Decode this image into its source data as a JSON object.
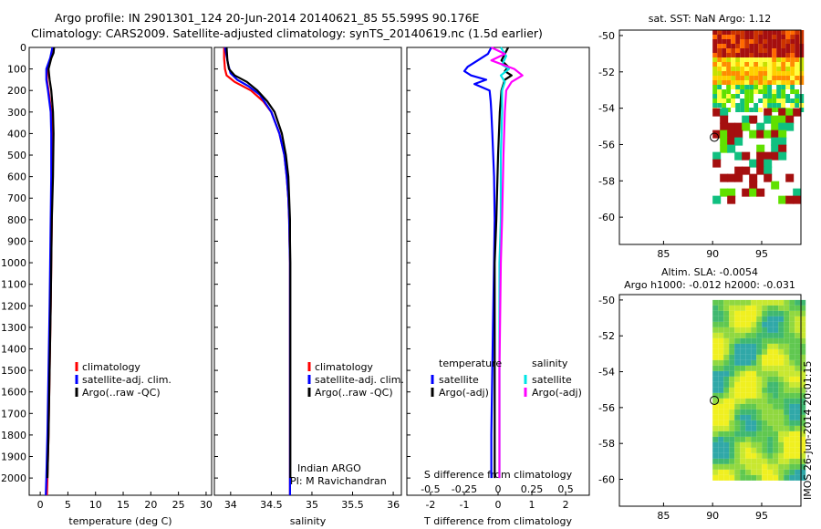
{
  "header": {
    "title_line1": "Argo profile: IN 2901301_124 20-Jun-2014 20140621_85 55.599S 90.176E",
    "title_line2": "Climatology: CARS2009. Satellite-adjusted climatology: synTS_20140619.nc (1.5d earlier)"
  },
  "colors": {
    "climatology": "#ff0000",
    "satellite": "#0000ff",
    "argo": "#000000",
    "salinity_sat": "#00e5e5",
    "salinity_argo": "#ff00ff"
  },
  "chart_data": [
    {
      "type": "line",
      "id": "temperature",
      "xlabel": "temperature (deg C)",
      "xlim": [
        -2,
        31
      ],
      "ylim": [
        0,
        2080
      ],
      "xticks": [
        0,
        5,
        10,
        15,
        20,
        25,
        30
      ],
      "yticks": [
        0,
        100,
        200,
        300,
        400,
        500,
        600,
        700,
        800,
        900,
        1000,
        1100,
        1200,
        1300,
        1400,
        1500,
        1600,
        1700,
        1800,
        1900,
        2000
      ],
      "legend": [
        "climatology",
        "satellite-adj. clim.",
        "Argo(..raw -QC)"
      ],
      "series": [
        {
          "name": "climatology",
          "color": "red",
          "depth": [
            0,
            50,
            100,
            150,
            200,
            300,
            400,
            600,
            800,
            1000,
            1200,
            1500,
            1800,
            2000,
            2080
          ],
          "values": [
            2.3,
            2.0,
            1.3,
            1.2,
            1.5,
            2.0,
            2.2,
            2.2,
            2.1,
            2.0,
            1.9,
            1.7,
            1.5,
            1.3,
            1.2
          ]
        },
        {
          "name": "satellite-adj. clim.",
          "color": "blue",
          "depth": [
            0,
            50,
            100,
            150,
            200,
            300,
            400,
            600,
            800,
            1000,
            1200,
            1500,
            1800,
            2000,
            2080
          ],
          "values": [
            2.2,
            1.8,
            1.1,
            1.1,
            1.4,
            1.9,
            2.0,
            2.0,
            1.9,
            1.8,
            1.7,
            1.5,
            1.3,
            1.1,
            1.0
          ]
        },
        {
          "name": "Argo(..raw -QC)",
          "color": "black",
          "depth": [
            0,
            25,
            50,
            100,
            150,
            200,
            300,
            400,
            600,
            800,
            1000,
            1200,
            1500,
            1800,
            2000
          ],
          "values": [
            2.5,
            2.4,
            2.0,
            1.5,
            1.7,
            2.0,
            2.3,
            2.4,
            2.3,
            2.1,
            2.0,
            1.9,
            1.7,
            1.5,
            1.3
          ]
        }
      ]
    },
    {
      "type": "line",
      "id": "salinity",
      "xlabel": "salinity",
      "xlim": [
        33.8,
        36.1
      ],
      "ylim": [
        0,
        2080
      ],
      "xticks": [
        34,
        34.5,
        35,
        35.5,
        36
      ],
      "legend": [
        "climatology",
        "satellite-adj. clim.",
        "Argo(..raw -QC)"
      ],
      "annotation": [
        "Indian ARGO",
        "PI: M Ravichandran"
      ],
      "series": [
        {
          "name": "climatology",
          "color": "red",
          "depth": [
            0,
            50,
            100,
            130,
            160,
            200,
            250,
            300,
            400,
            500,
            600,
            700,
            800,
            900,
            1000,
            1500,
            2000,
            2080
          ],
          "values": [
            33.92,
            33.92,
            33.93,
            33.95,
            34.05,
            34.25,
            34.4,
            34.5,
            34.6,
            34.66,
            34.69,
            34.71,
            34.72,
            34.725,
            34.73,
            34.73,
            34.73,
            34.73
          ]
        },
        {
          "name": "satellite-adj. clim.",
          "color": "blue",
          "depth": [
            0,
            40,
            80,
            120,
            150,
            180,
            220,
            300,
            400,
            500,
            600,
            700,
            800,
            900,
            1000,
            1500,
            2000,
            2080
          ],
          "values": [
            33.93,
            33.95,
            33.97,
            34.0,
            34.08,
            34.22,
            34.36,
            34.5,
            34.6,
            34.66,
            34.69,
            34.71,
            34.72,
            34.725,
            34.73,
            34.73,
            34.73,
            34.73
          ]
        },
        {
          "name": "Argo(..raw -QC)",
          "color": "black",
          "depth": [
            0,
            60,
            100,
            130,
            160,
            200,
            250,
            300,
            400,
            500,
            600,
            700,
            800,
            900,
            1000,
            1500,
            2000
          ],
          "values": [
            33.95,
            33.96,
            33.98,
            34.05,
            34.2,
            34.33,
            34.45,
            34.54,
            34.63,
            34.68,
            34.71,
            34.72,
            34.73,
            34.73,
            34.735,
            34.735,
            34.735
          ]
        }
      ]
    },
    {
      "type": "line",
      "id": "difference",
      "xlabel": "T difference from climatology",
      "xlabel_top": "S difference from climatology",
      "xlim": [
        -2.7,
        2.7
      ],
      "ylim": [
        0,
        2080
      ],
      "xticks": [
        -2,
        -1,
        0,
        1,
        2
      ],
      "xticks_top": [
        "-0.5",
        "-0.25",
        "0",
        "0.25",
        "0.5"
      ],
      "legend_titles": [
        "temperature",
        "salinity"
      ],
      "legend": [
        "satellite",
        "Argo(-adj)",
        "satellite",
        "Argo(-adj)"
      ],
      "series": [
        {
          "name": "temperature satellite",
          "color": "blue",
          "depth": [
            0,
            30,
            60,
            90,
            110,
            130,
            150,
            170,
            200,
            250,
            300,
            400,
            600,
            800,
            1000,
            1300,
            1600,
            1800,
            2000
          ],
          "values": [
            -0.2,
            -0.3,
            -0.6,
            -0.9,
            -1.0,
            -0.8,
            -0.35,
            -0.7,
            -0.25,
            -0.22,
            -0.2,
            -0.17,
            -0.12,
            -0.1,
            -0.12,
            -0.15,
            -0.18,
            -0.2,
            -0.2
          ]
        },
        {
          "name": "temperature Argo(-adj)",
          "color": "black",
          "depth": [
            0,
            30,
            60,
            90,
            110,
            130,
            150,
            200,
            300,
            500,
            800,
            1000,
            1500,
            2000
          ],
          "values": [
            0.3,
            0.2,
            0.1,
            0.3,
            0.2,
            0.4,
            0.2,
            0.1,
            0.05,
            0.0,
            -0.05,
            -0.1,
            -0.1,
            -0.1
          ]
        },
        {
          "name": "salinity satellite",
          "color": "cyan",
          "depth": [
            0,
            40,
            80,
            100,
            130,
            160,
            200,
            300,
            500,
            800,
            1000,
            1500,
            2000
          ],
          "values": [
            0.02,
            0.06,
            0.03,
            0.08,
            0.02,
            0.05,
            0.03,
            0.03,
            0.02,
            0.02,
            0.01,
            0.01,
            0.01
          ]
        },
        {
          "name": "salinity Argo(-adj)",
          "color": "magenta",
          "depth": [
            0,
            30,
            60,
            100,
            130,
            160,
            200,
            300,
            500,
            800,
            1000,
            1500,
            2000
          ],
          "values": [
            -0.05,
            0.05,
            -0.05,
            0.12,
            0.18,
            0.1,
            0.06,
            0.05,
            0.04,
            0.03,
            0.02,
            0.01,
            0.01
          ]
        }
      ]
    },
    {
      "type": "heatmap",
      "id": "sst_map",
      "title": "sat. SST: NaN Argo: 1.12",
      "xlim": [
        80.5,
        99
      ],
      "ylim": [
        -61.5,
        -49.7
      ],
      "xticks": [
        85,
        90,
        95
      ],
      "yticks": [
        -50,
        -52,
        -54,
        -56,
        -58,
        -60
      ],
      "argo_position": [
        90.176,
        -55.599
      ]
    },
    {
      "type": "heatmap",
      "id": "sla_map",
      "title_line1": "Altim. SLA: -0.0054",
      "title_line2": "Argo h1000: -0.012 h2000: -0.031",
      "xlim": [
        80.5,
        99
      ],
      "ylim": [
        -61.5,
        -49.7
      ],
      "xticks": [
        85,
        90,
        95
      ],
      "yticks": [
        -50,
        -52,
        -54,
        -56,
        -58,
        -60
      ],
      "argo_position": [
        90.176,
        -55.599
      ]
    }
  ],
  "footer": {
    "timestamp": "IMOS 26-Jun-2014 20:01:15"
  }
}
